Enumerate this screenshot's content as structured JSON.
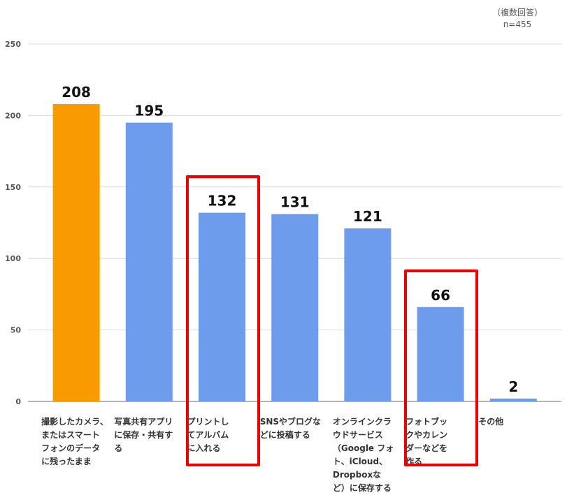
{
  "notes": {
    "line1": "（複数回答）",
    "line2": "n=455"
  },
  "colors": {
    "highlight_bar": "#f99b00",
    "default_bar": "#6c9ceb",
    "gridline": "#d9d9d9",
    "axis": "#888888",
    "highlight_box": "#ee0000"
  },
  "chart_data": {
    "type": "bar",
    "title": "",
    "xlabel": "",
    "ylabel": "",
    "ylim": [
      0,
      250
    ],
    "yticks": [
      0,
      50,
      100,
      150,
      200,
      250
    ],
    "grid": true,
    "legend": "none",
    "categories": [
      "撮影したカメラ、またはスマートフォンのデータに残ったまま",
      "写真共有アプリに保存・共有する",
      "プリントしてアルバムに入れる",
      "SNSやブログなどに投稿する",
      "オンラインクラウドサービス（Google フォト、iCloud、Dropboxなど）に保存する",
      "フォトブックやカレンダーなどを作る",
      "その他"
    ],
    "category_lines": [
      "撮影したカメラ、\nまたはスマート\nフォンのデータ\nに残ったまま",
      "写真共有アプリ\nに保存・共有す\nる",
      "プリントし\nてアルバム\nに入れる",
      "SNSやブログな\nどに投稿する",
      "オンラインクラ\nウドサービス\n（Google フォ\nト、iCloud、\nDropboxな\nど）に保存する",
      "フォトブッ\nクやカレン\nダーなどを\n作る",
      "その他"
    ],
    "series": [
      {
        "values": [
          208,
          195,
          132,
          131,
          121,
          66,
          2
        ]
      }
    ],
    "value_labels": [
      "208",
      "195",
      "132",
      "131",
      "121",
      "66",
      "2"
    ],
    "highlight_index": 0,
    "boxed_indices": [
      2,
      5
    ]
  }
}
